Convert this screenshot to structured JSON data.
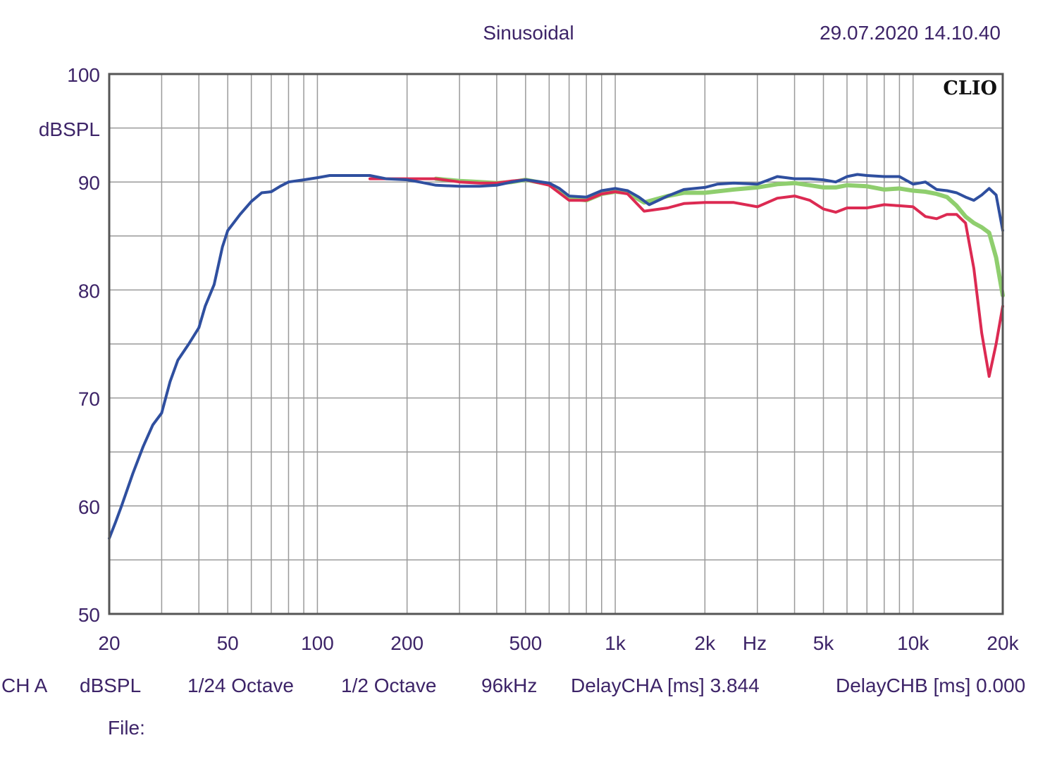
{
  "header": {
    "mode": "Sinusoidal",
    "datetime": "29.07.2020 14.10.40",
    "brand": "CLIO"
  },
  "footer": {
    "channel": "CH A",
    "unit": "dBSPL",
    "resolution": "1/24 Octave",
    "smoothing": "1/2 Octave",
    "sample_rate": "96kHz",
    "delay_a": "DelayCHA [ms] 3.844",
    "delay_b": "DelayCHB [ms] 0.000",
    "file_label": "File:"
  },
  "colors": {
    "text": "#3d2468",
    "grid": "#9a9a9a",
    "border": "#555555",
    "blue": "#2f4f9f",
    "green": "#8fce6e",
    "red": "#dc2a52"
  },
  "chart_data": {
    "type": "line",
    "ylabel": "dBSPL",
    "xlabel": "Hz",
    "x_scale": "log",
    "xlim": [
      20,
      20000
    ],
    "ylim": [
      50,
      100
    ],
    "grid": true,
    "y_ticks": [
      {
        "value": 100,
        "label": "100"
      },
      {
        "value": 90,
        "label": "90"
      },
      {
        "value": 80,
        "label": "80"
      },
      {
        "value": 70,
        "label": "70"
      },
      {
        "value": 60,
        "label": "60"
      },
      {
        "value": 50,
        "label": "50"
      }
    ],
    "x_ticks": [
      {
        "value": 20,
        "label": "20"
      },
      {
        "value": 50,
        "label": "50"
      },
      {
        "value": 100,
        "label": "100"
      },
      {
        "value": 200,
        "label": "200"
      },
      {
        "value": 500,
        "label": "500"
      },
      {
        "value": 1000,
        "label": "1k"
      },
      {
        "value": 2000,
        "label": "2k"
      },
      {
        "value": 5000,
        "label": "5k"
      },
      {
        "value": 10000,
        "label": "10k"
      },
      {
        "value": 20000,
        "label": "20k"
      }
    ],
    "series": [
      {
        "color": "#8fce6e",
        "width": 6,
        "points": [
          [
            250,
            90.3
          ],
          [
            300,
            90.1
          ],
          [
            350,
            90.0
          ],
          [
            400,
            89.9
          ],
          [
            450,
            90.0
          ],
          [
            500,
            90.2
          ],
          [
            600,
            89.8
          ],
          [
            700,
            88.5
          ],
          [
            800,
            88.3
          ],
          [
            900,
            88.9
          ],
          [
            1000,
            89.1
          ],
          [
            1100,
            89.0
          ],
          [
            1250,
            88.1
          ],
          [
            1500,
            88.7
          ],
          [
            1700,
            89.0
          ],
          [
            2000,
            89.0
          ],
          [
            2500,
            89.3
          ],
          [
            3000,
            89.5
          ],
          [
            3500,
            89.8
          ],
          [
            4000,
            89.9
          ],
          [
            4500,
            89.7
          ],
          [
            5000,
            89.5
          ],
          [
            5500,
            89.5
          ],
          [
            6000,
            89.7
          ],
          [
            7000,
            89.6
          ],
          [
            8000,
            89.3
          ],
          [
            9000,
            89.4
          ],
          [
            10000,
            89.2
          ],
          [
            11000,
            89.1
          ],
          [
            12000,
            88.9
          ],
          [
            13000,
            88.6
          ],
          [
            14000,
            87.8
          ],
          [
            15000,
            86.8
          ],
          [
            16000,
            86.2
          ],
          [
            17000,
            85.8
          ],
          [
            18000,
            85.3
          ],
          [
            19000,
            83.0
          ],
          [
            20000,
            79.5
          ]
        ]
      },
      {
        "color": "#dc2a52",
        "width": 4,
        "points": [
          [
            150,
            90.3
          ],
          [
            200,
            90.3
          ],
          [
            250,
            90.3
          ],
          [
            300,
            90.0
          ],
          [
            350,
            89.9
          ],
          [
            400,
            89.9
          ],
          [
            450,
            90.1
          ],
          [
            500,
            90.2
          ],
          [
            600,
            89.7
          ],
          [
            700,
            88.3
          ],
          [
            800,
            88.3
          ],
          [
            900,
            88.9
          ],
          [
            1000,
            89.1
          ],
          [
            1100,
            88.9
          ],
          [
            1250,
            87.3
          ],
          [
            1500,
            87.6
          ],
          [
            1700,
            88.0
          ],
          [
            2000,
            88.1
          ],
          [
            2500,
            88.1
          ],
          [
            3000,
            87.7
          ],
          [
            3500,
            88.5
          ],
          [
            4000,
            88.7
          ],
          [
            4500,
            88.3
          ],
          [
            5000,
            87.5
          ],
          [
            5500,
            87.2
          ],
          [
            6000,
            87.6
          ],
          [
            7000,
            87.6
          ],
          [
            8000,
            87.9
          ],
          [
            9000,
            87.8
          ],
          [
            10000,
            87.7
          ],
          [
            11000,
            86.8
          ],
          [
            12000,
            86.6
          ],
          [
            13000,
            87.0
          ],
          [
            14000,
            87.0
          ],
          [
            15000,
            86.2
          ],
          [
            16000,
            82.0
          ],
          [
            17000,
            76.0
          ],
          [
            18000,
            72.0
          ],
          [
            19000,
            75.0
          ],
          [
            20000,
            78.5
          ]
        ]
      },
      {
        "color": "#2f4f9f",
        "width": 4,
        "points": [
          [
            20,
            57.0
          ],
          [
            21,
            58.5
          ],
          [
            22,
            60.0
          ],
          [
            24,
            63.0
          ],
          [
            26,
            65.5
          ],
          [
            28,
            67.5
          ],
          [
            30,
            68.6
          ],
          [
            32,
            71.5
          ],
          [
            34,
            73.5
          ],
          [
            37,
            75.0
          ],
          [
            40,
            76.5
          ],
          [
            42,
            78.5
          ],
          [
            45,
            80.5
          ],
          [
            48,
            84.0
          ],
          [
            50,
            85.5
          ],
          [
            55,
            87.0
          ],
          [
            60,
            88.2
          ],
          [
            65,
            89.0
          ],
          [
            70,
            89.1
          ],
          [
            75,
            89.6
          ],
          [
            80,
            90.0
          ],
          [
            90,
            90.2
          ],
          [
            100,
            90.4
          ],
          [
            110,
            90.6
          ],
          [
            130,
            90.6
          ],
          [
            150,
            90.6
          ],
          [
            170,
            90.3
          ],
          [
            200,
            90.2
          ],
          [
            220,
            90.0
          ],
          [
            250,
            89.7
          ],
          [
            300,
            89.6
          ],
          [
            350,
            89.6
          ],
          [
            400,
            89.7
          ],
          [
            450,
            90.0
          ],
          [
            500,
            90.2
          ],
          [
            600,
            89.9
          ],
          [
            650,
            89.4
          ],
          [
            700,
            88.7
          ],
          [
            800,
            88.6
          ],
          [
            900,
            89.2
          ],
          [
            1000,
            89.4
          ],
          [
            1100,
            89.2
          ],
          [
            1200,
            88.6
          ],
          [
            1300,
            87.9
          ],
          [
            1500,
            88.7
          ],
          [
            1700,
            89.3
          ],
          [
            2000,
            89.5
          ],
          [
            2200,
            89.8
          ],
          [
            2500,
            89.9
          ],
          [
            3000,
            89.8
          ],
          [
            3500,
            90.5
          ],
          [
            4000,
            90.3
          ],
          [
            4500,
            90.3
          ],
          [
            5000,
            90.2
          ],
          [
            5500,
            90.0
          ],
          [
            6000,
            90.5
          ],
          [
            6500,
            90.7
          ],
          [
            7000,
            90.6
          ],
          [
            8000,
            90.5
          ],
          [
            9000,
            90.5
          ],
          [
            10000,
            89.8
          ],
          [
            11000,
            90.0
          ],
          [
            12000,
            89.3
          ],
          [
            13000,
            89.2
          ],
          [
            14000,
            89.0
          ],
          [
            15000,
            88.6
          ],
          [
            16000,
            88.3
          ],
          [
            17000,
            88.8
          ],
          [
            18000,
            89.4
          ],
          [
            19000,
            88.8
          ],
          [
            20000,
            85.5
          ]
        ]
      }
    ]
  }
}
